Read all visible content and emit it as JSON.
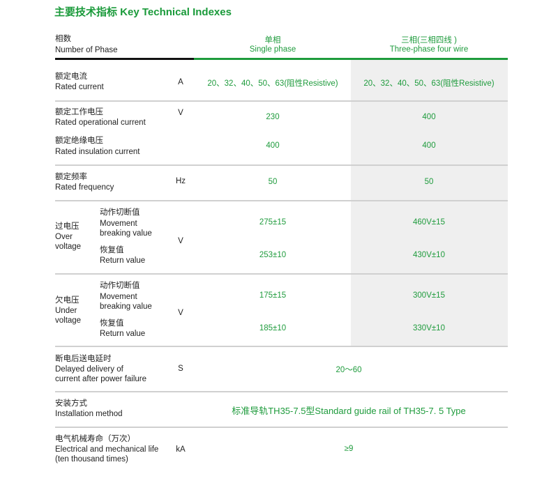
{
  "title": "主要技术指标  Key Technical Indexes",
  "header": {
    "label_cn": "相数",
    "label_en": "Number of Phase",
    "single_cn": "单相",
    "single_en": "Single phase",
    "three_cn": "三相(三相四线 )",
    "three_en": "Three-phase four wire"
  },
  "rows": {
    "rated_current": {
      "cn": "额定电流",
      "en": "Rated current",
      "unit": "A",
      "single": "20、32、40、50、63(阻性Resistive)",
      "three": "20、32、40、50、63(阻性Resistive)"
    },
    "op_voltage": {
      "cn": "额定工作电压",
      "en": "Rated operational current",
      "unit": "V",
      "single": "230",
      "three": "400"
    },
    "ins_voltage": {
      "cn": "额定绝缘电压",
      "en": "Rated insulation current",
      "single": "400",
      "three": "400"
    },
    "frequency": {
      "cn": "额定频率",
      "en": "Rated frequency",
      "unit": "Hz",
      "single": "50",
      "three": "50"
    },
    "over_voltage": {
      "cn": "过电压",
      "en1": "Over",
      "en2": "voltage",
      "unit": "V",
      "break_cn": "动作切断值",
      "break_en1": "Movement",
      "break_en2": "breaking value",
      "return_cn": "恢复值",
      "return_en": "Return value",
      "single_break": "275±15",
      "three_break": "460V±15",
      "single_return": "253±10",
      "three_return": "430V±10"
    },
    "under_voltage": {
      "cn": "欠电压",
      "en1": "Under",
      "en2": "voltage",
      "unit": "V",
      "break_cn": "动作切断值",
      "break_en1": "Movement",
      "break_en2": "breaking value",
      "return_cn": "恢复值",
      "return_en": "Return value",
      "single_break": "175±15",
      "three_break": "300V±15",
      "single_return": "185±10",
      "three_return": "330V±10"
    },
    "delay": {
      "cn": "断电后送电延时",
      "en1": "Delayed delivery of",
      "en2": "current after power failure",
      "unit": "S",
      "value": "20～60"
    },
    "install": {
      "cn": "安装方式",
      "en": "Installation method",
      "value": "标准导轨TH35-7.5型Standard guide rail of TH35-7. 5 Type"
    },
    "life": {
      "cn": "电气机械寿命（万次）",
      "en1": "Electrical and mechanical life",
      "en2": "(ten thousand times)",
      "unit": "kA",
      "value": "≥9"
    }
  },
  "colors": {
    "accent": "#1e9b3c",
    "header_rule": "#111111",
    "column_shade": "#efefef",
    "separator": "#d0d0d0"
  }
}
